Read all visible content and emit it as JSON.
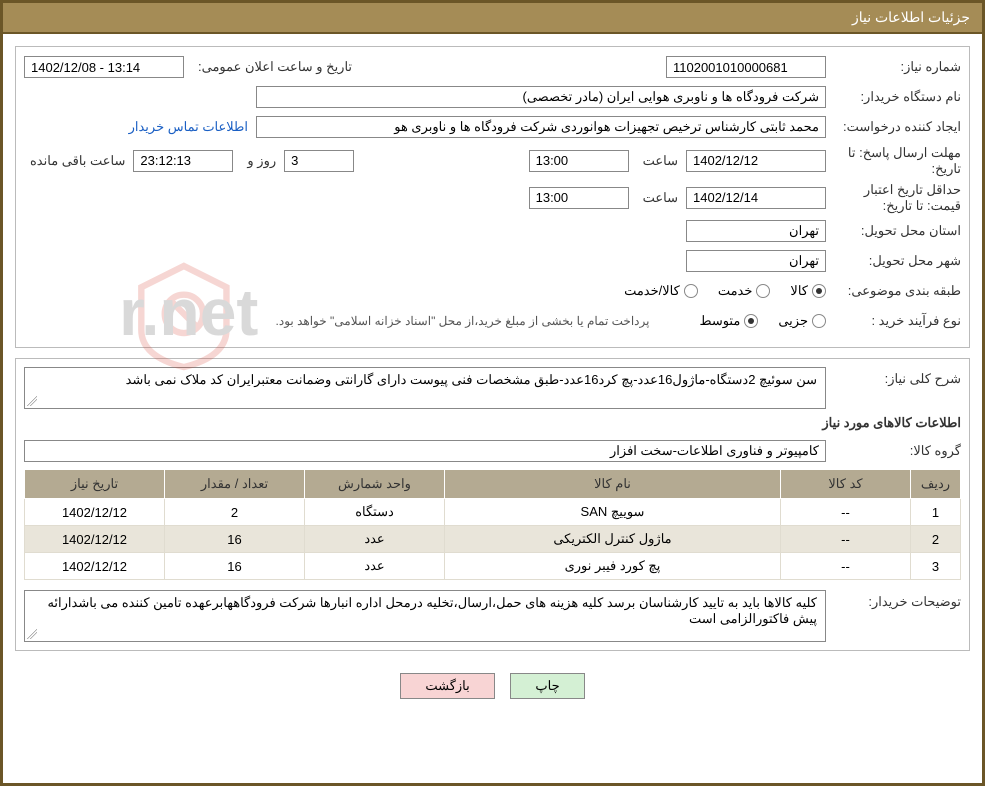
{
  "header": {
    "title": "جزئیات اطلاعات نیاز"
  },
  "fields": {
    "need_no_label": "شماره نیاز:",
    "need_no": "1102001010000681",
    "announce_label": "تاریخ و ساعت اعلان عمومی:",
    "announce_value": "1402/12/08 - 13:14",
    "buyer_org_label": "نام دستگاه خریدار:",
    "buyer_org": "شرکت فرودگاه ها و ناوبری هوایی ایران (مادر تخصصی)",
    "requester_label": "ایجاد کننده درخواست:",
    "requester": "محمد  ثابتی کارشناس ترخیص تجهیزات هوانوردی شرکت فرودگاه ها و ناوبری هو",
    "contact_link": "اطلاعات تماس خریدار",
    "deadline_label": "مهلت ارسال پاسخ:",
    "until_date_label": "تا تاریخ:",
    "deadline_date": "1402/12/12",
    "time_label": "ساعت",
    "deadline_time": "13:00",
    "days_remaining": "3",
    "days_and_label": "روز و",
    "countdown": "23:12:13",
    "remaining_label": "ساعت باقی مانده",
    "min_validity_label": "حداقل تاریخ اعتبار قیمت:",
    "min_validity_date": "1402/12/14",
    "min_validity_time": "13:00",
    "province_label": "استان محل تحویل:",
    "province": "تهران",
    "city_label": "شهر محل تحویل:",
    "city": "تهران",
    "category_label": "طبقه بندی موضوعی:",
    "cat_goods": "کالا",
    "cat_service": "خدمت",
    "cat_goods_service": "کالا/خدمت",
    "process_label": "نوع فرآیند خرید :",
    "proc_minor": "جزیی",
    "proc_medium": "متوسط",
    "payment_note": "پرداخت تمام یا بخشی از مبلغ خرید،از محل \"اسناد خزانه اسلامی\" خواهد بود."
  },
  "need_desc": {
    "label": "شرح کلی نیاز:",
    "text": "سن سوئیچ 2دستگاه-ماژول16عدد-پچ کرد16عدد-طبق مشخصات فنی پیوست دارای گارانتی وضمانت معتبرایران کد ملاک نمی باشد"
  },
  "items_heading": "اطلاعات کالاهای مورد نیاز",
  "group": {
    "label": "گروه کالا:",
    "value": "کامپیوتر و فناوری اطلاعات-سخت افزار"
  },
  "table": {
    "columns": [
      "ردیف",
      "کد کالا",
      "نام کالا",
      "واحد شمارش",
      "تعداد / مقدار",
      "تاریخ نیاز"
    ],
    "col_widths": [
      "50px",
      "130px",
      "auto",
      "140px",
      "140px",
      "140px"
    ],
    "rows": [
      [
        "1",
        "--",
        "سوییچ SAN",
        "دستگاه",
        "2",
        "1402/12/12"
      ],
      [
        "2",
        "--",
        "ماژول کنترل الکتریکی",
        "عدد",
        "16",
        "1402/12/12"
      ],
      [
        "3",
        "--",
        "پچ کورد فیبر نوری",
        "عدد",
        "16",
        "1402/12/12"
      ]
    ]
  },
  "buyer_note": {
    "label": "توضیحات خریدار:",
    "text": "کلیه کالاها باید به تایید کارشناسان برسد کلیه هزینه های حمل،ارسال،تخلیه درمحل اداره انبارها شرکت فرودگاههابرعهده تامین کننده می باشدارائه پیش فاکتورالزامی است"
  },
  "buttons": {
    "print": "چاپ",
    "back": "بازگشت"
  },
  "colors": {
    "header_bg": "#a58c56",
    "frame": "#6b5627",
    "th_bg": "#b4aa92",
    "link": "#1a5fc4",
    "print_bg": "#d4f0d4",
    "back_bg": "#f8d4d4",
    "watermark": "#d94a3a"
  },
  "watermark_text": "AriaTender.net"
}
